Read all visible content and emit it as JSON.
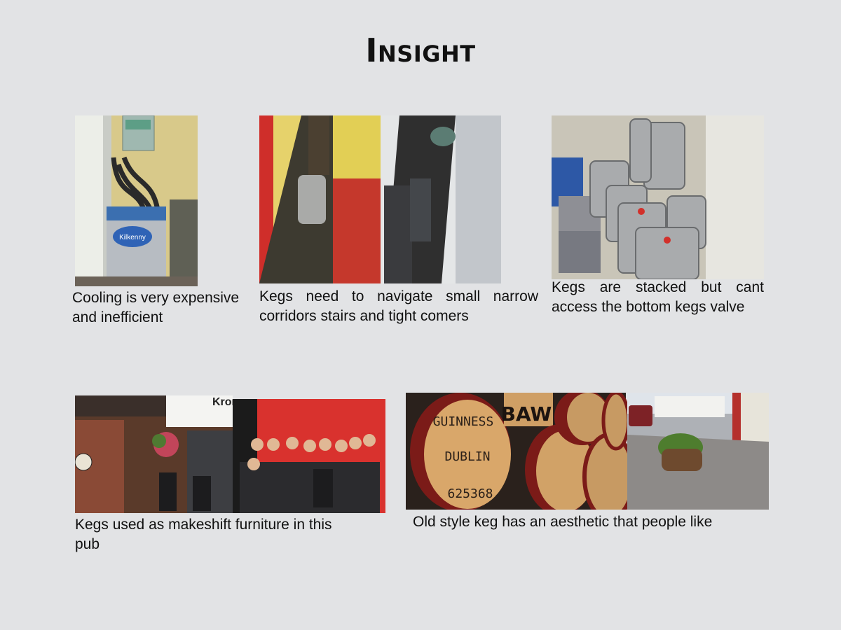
{
  "title": "Insight",
  "panels": [
    {
      "caption": "Cooling is very expensive and inefficient",
      "photo": "cooling-unit-photo",
      "sign_text": "Kilkenny"
    },
    {
      "caption": "Kegs need to navigate small narrow corridors stairs and tight comers",
      "photo": "corridor-photos"
    },
    {
      "caption": "Kegs are stacked but cant access the bottom kegs valve",
      "photo": "stacked-kegs-photo"
    },
    {
      "caption": "Kegs used as makeshift furniture in this pub",
      "photo": "pub-furniture-photos",
      "sign_text": "Kron"
    },
    {
      "caption": "Old style keg has an aesthetic that people like",
      "photo": "barrel-aesthetic-photos",
      "barrel_text": {
        "line1": "GUINNESS",
        "line2": "DUBLIN",
        "line3": "625368",
        "top": "BAW"
      }
    }
  ]
}
